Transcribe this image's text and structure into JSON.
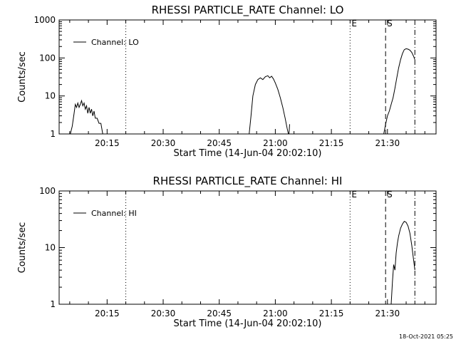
{
  "footer": {
    "timestamp": "18-Oct-2021 05:25"
  },
  "chart_data": [
    {
      "type": "line",
      "title": "RHESSI PARTICLE_RATE Channel: LO",
      "xlabel": "Start Time (14-Jun-04 20:02:10)",
      "ylabel": "Counts/sec",
      "yscale": "log",
      "ylim": [
        1,
        1000
      ],
      "xlim": [
        "20:02:10",
        "21:43:00"
      ],
      "x_ticks": [
        "20:15",
        "20:30",
        "20:45",
        "21:00",
        "21:15",
        "21:30"
      ],
      "y_ticks": [
        "1",
        "10",
        "100",
        "1000"
      ],
      "legend": {
        "position": "top-left",
        "entries": [
          "Channel: LO"
        ]
      },
      "color": "#000000",
      "markers": [
        {
          "label": "",
          "time": "20:20:00",
          "style": "dotted"
        },
        {
          "label": "E",
          "time": "21:20:00",
          "style": "dotted"
        },
        {
          "label": "S",
          "time": "21:29:30",
          "style": "dashed"
        },
        {
          "label": "",
          "time": "21:37:20",
          "style": "dashdot"
        }
      ],
      "series": [
        {
          "segments": [
            [
              [
                "20:05:10",
                1
              ],
              [
                "20:05:40",
                1.6
              ],
              [
                "20:06:10",
                3.5
              ],
              [
                "20:06:30",
                6
              ],
              [
                "20:06:50",
                5
              ],
              [
                "20:07:10",
                6.5
              ],
              [
                "20:07:30",
                5
              ],
              [
                "20:07:50",
                6
              ],
              [
                "20:08:10",
                7.5
              ],
              [
                "20:08:30",
                5.5
              ],
              [
                "20:08:50",
                6.5
              ],
              [
                "20:09:10",
                4.5
              ],
              [
                "20:09:30",
                5.5
              ],
              [
                "20:09:50",
                3.5
              ],
              [
                "20:10:10",
                5
              ],
              [
                "20:10:30",
                3.5
              ],
              [
                "20:10:50",
                4.5
              ],
              [
                "20:11:10",
                3
              ],
              [
                "20:11:30",
                4
              ],
              [
                "20:11:50",
                2.6
              ],
              [
                "20:12:20",
                2.6
              ],
              [
                "20:12:50",
                1.9
              ],
              [
                "20:13:20",
                1.9
              ],
              [
                "20:13:50",
                1
              ]
            ],
            [
              [
                "20:53:00",
                1
              ],
              [
                "20:53:30",
                3
              ],
              [
                "20:54:00",
                10
              ],
              [
                "20:54:40",
                20
              ],
              [
                "20:55:20",
                27
              ],
              [
                "20:56:00",
                30
              ],
              [
                "20:56:40",
                27
              ],
              [
                "20:57:20",
                32
              ],
              [
                "20:58:00",
                34
              ],
              [
                "20:58:30",
                30
              ],
              [
                "20:59:00",
                33
              ],
              [
                "20:59:30",
                28
              ],
              [
                "21:00:00",
                22
              ],
              [
                "21:00:40",
                15
              ],
              [
                "21:01:20",
                9
              ],
              [
                "21:02:00",
                5
              ],
              [
                "21:02:40",
                2.5
              ],
              [
                "21:03:10",
                1.4
              ],
              [
                "21:03:30",
                1
              ]
            ],
            [
              [
                "21:03:40",
                1
              ],
              [
                "21:03:50",
                1.8
              ]
            ],
            [
              [
                "21:29:00",
                1
              ],
              [
                "21:29:30",
                1.8
              ],
              [
                "21:30:00",
                3
              ],
              [
                "21:30:30",
                4
              ],
              [
                "21:31:00",
                6
              ],
              [
                "21:31:30",
                9
              ],
              [
                "21:32:00",
                16
              ],
              [
                "21:32:30",
                30
              ],
              [
                "21:33:00",
                55
              ],
              [
                "21:33:30",
                90
              ],
              [
                "21:34:00",
                130
              ],
              [
                "21:34:30",
                165
              ],
              [
                "21:35:00",
                175
              ],
              [
                "21:35:30",
                170
              ],
              [
                "21:36:00",
                160
              ],
              [
                "21:36:30",
                140
              ],
              [
                "21:37:00",
                110
              ],
              [
                "21:37:20",
                90
              ]
            ]
          ]
        }
      ]
    },
    {
      "type": "line",
      "title": "RHESSI PARTICLE_RATE Channel: HI",
      "xlabel": "Start Time (14-Jun-04 20:02:10)",
      "ylabel": "Counts/sec",
      "yscale": "log",
      "ylim": [
        1,
        100
      ],
      "xlim": [
        "20:02:10",
        "21:43:00"
      ],
      "x_ticks": [
        "20:15",
        "20:30",
        "20:45",
        "21:00",
        "21:15",
        "21:30"
      ],
      "y_ticks": [
        "1",
        "10",
        "100"
      ],
      "legend": {
        "position": "top-left",
        "entries": [
          "Channel: HI"
        ]
      },
      "color": "#000000",
      "markers": [
        {
          "label": "",
          "time": "20:20:00",
          "style": "dotted"
        },
        {
          "label": "E",
          "time": "21:20:00",
          "style": "dotted"
        },
        {
          "label": "S",
          "time": "21:29:30",
          "style": "dashed"
        },
        {
          "label": "",
          "time": "21:37:20",
          "style": "dashdot"
        }
      ],
      "series": [
        {
          "segments": [
            [
              [
                "21:31:00",
                1
              ],
              [
                "21:31:20",
                2.5
              ],
              [
                "21:31:40",
                5
              ],
              [
                "21:32:00",
                4
              ],
              [
                "21:32:20",
                8
              ],
              [
                "21:32:40",
                12
              ],
              [
                "21:33:00",
                16
              ],
              [
                "21:33:30",
                22
              ],
              [
                "21:34:00",
                26
              ],
              [
                "21:34:30",
                29
              ],
              [
                "21:35:00",
                28
              ],
              [
                "21:35:30",
                24
              ],
              [
                "21:36:00",
                18
              ],
              [
                "21:36:30",
                11
              ],
              [
                "21:37:00",
                6
              ],
              [
                "21:37:20",
                4
              ]
            ]
          ]
        }
      ]
    }
  ]
}
